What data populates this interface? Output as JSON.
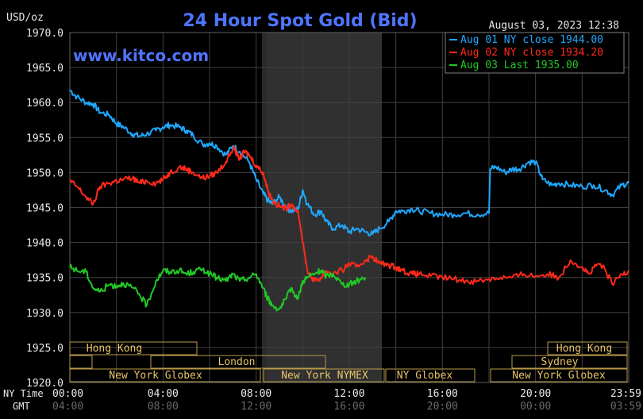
{
  "colors": {
    "background": "#000000",
    "grid": "#404040",
    "axis_text": "#e8e8e8",
    "title": "#4f74ff",
    "watermark": "#4f74ff",
    "session_band": "#2a2a2a",
    "market_label": "#e8c46a",
    "market_box": "#b89a48"
  },
  "header": {
    "currency_label": "USD/oz",
    "title": "24 Hour Spot Gold (Bid)",
    "datetime": "August 03, 2023 12:38",
    "watermark": "www.kitco.com"
  },
  "axis_labels": {
    "ny_time": "NY Time",
    "gmt": "GMT"
  },
  "markets": {
    "row1_left": "Hong Kong",
    "row1_right": "Hong Kong",
    "row2_mid": "London",
    "row2_right": "Sydney",
    "row3_a": "New York Globex",
    "row3_b": "New York NYMEX",
    "row3_c": "NY Globex",
    "row3_d": "New York Globex"
  },
  "chart_data": {
    "type": "line",
    "title": "24 Hour Spot Gold (Bid)",
    "ylabel": "USD/oz",
    "ylim": [
      1920,
      1970
    ],
    "xlim_hours": [
      0,
      24
    ],
    "grid": true,
    "legend_position": "top-right",
    "yticks": [
      "1970.0",
      "1965.0",
      "1960.0",
      "1955.0",
      "1950.0",
      "1945.0",
      "1940.0",
      "1935.0",
      "1930.0",
      "1925.0",
      "1920.0"
    ],
    "ytick_values": [
      1970,
      1965,
      1960,
      1955,
      1950,
      1945,
      1940,
      1935,
      1930,
      1925,
      1920
    ],
    "xticks_ny": [
      "00:00",
      "04:00",
      "08:00",
      "12:00",
      "16:00",
      "20:00",
      "23:59"
    ],
    "xticks_gmt": [
      "04:00",
      "08:00",
      "12:00",
      "16:00",
      "20:00",
      "00:00",
      "03:59"
    ],
    "xtick_hours": [
      0,
      4,
      8,
      12,
      16,
      20,
      24
    ],
    "series": [
      {
        "name": "Aug 01 NY close 1944.00",
        "color": "#1fa8ff",
        "x": [
          0,
          0.3,
          0.7,
          1.0,
          1.3,
          1.7,
          2.0,
          2.3,
          2.7,
          3.0,
          3.3,
          3.7,
          4.0,
          4.3,
          4.7,
          5.0,
          5.3,
          5.7,
          6.0,
          6.3,
          6.7,
          7.0,
          7.3,
          7.7,
          8.0,
          8.3,
          8.5,
          8.7,
          9.0,
          9.3,
          9.5,
          9.8,
          10.0,
          10.2,
          10.5,
          10.8,
          11.0,
          11.3,
          11.7,
          12.0,
          12.3,
          12.7,
          13.0,
          13.3,
          13.7,
          14.0,
          14.3,
          14.7,
          15.0,
          15.5,
          16.0,
          16.5,
          17.0,
          17.5,
          18.0,
          18.05,
          18.3,
          18.7,
          19.0,
          19.3,
          19.7,
          20.0,
          20.3,
          20.7,
          21.0,
          21.5,
          22.0,
          22.5,
          23.0,
          23.3,
          23.7,
          24.0
        ],
        "values": [
          1961.8,
          1960.8,
          1960.0,
          1959.8,
          1958.6,
          1958.2,
          1957.0,
          1956.5,
          1955.5,
          1955.2,
          1955.5,
          1956.0,
          1956.5,
          1956.8,
          1956.5,
          1956.0,
          1955.3,
          1954.0,
          1954.2,
          1953.8,
          1952.5,
          1953.8,
          1953.0,
          1951.5,
          1949.0,
          1947.0,
          1946.0,
          1945.5,
          1946.5,
          1945.0,
          1944.5,
          1944.8,
          1947.5,
          1945.5,
          1944.0,
          1944.5,
          1943.0,
          1942.0,
          1942.5,
          1941.5,
          1942.0,
          1941.5,
          1941.2,
          1942.0,
          1943.0,
          1944.5,
          1944.5,
          1944.8,
          1944.5,
          1944.2,
          1944.0,
          1944.0,
          1944.2,
          1944.0,
          1944.2,
          1950.5,
          1950.8,
          1950.0,
          1950.5,
          1950.5,
          1951.5,
          1951.5,
          1949.0,
          1948.2,
          1948.5,
          1948.2,
          1948.0,
          1948.2,
          1947.5,
          1946.8,
          1948.2,
          1948.5
        ]
      },
      {
        "name": "Aug 02 NY close 1934.20",
        "color": "#ff2a1a",
        "x": [
          0,
          0.3,
          0.7,
          1.0,
          1.3,
          1.7,
          2.0,
          2.3,
          2.7,
          3.0,
          3.3,
          3.7,
          4.0,
          4.3,
          4.7,
          5.0,
          5.3,
          5.7,
          6.0,
          6.3,
          6.7,
          7.0,
          7.3,
          7.5,
          7.7,
          8.0,
          8.3,
          8.5,
          8.7,
          9.0,
          9.3,
          9.5,
          9.8,
          10.0,
          10.2,
          10.5,
          10.8,
          11.0,
          11.3,
          11.7,
          12.0,
          12.3,
          12.7,
          13.0,
          13.3,
          13.7,
          14.0,
          14.3,
          14.7,
          15.0,
          15.5,
          16.0,
          16.5,
          17.0,
          17.5,
          18.0,
          18.5,
          19.0,
          19.5,
          20.0,
          20.5,
          21.0,
          21.5,
          22.0,
          22.3,
          22.7,
          23.0,
          23.3,
          23.7,
          24.0
        ],
        "values": [
          1948.8,
          1948.0,
          1946.5,
          1945.5,
          1948.0,
          1948.5,
          1948.8,
          1949.0,
          1949.2,
          1948.5,
          1948.8,
          1948.5,
          1949.0,
          1950.0,
          1950.8,
          1950.5,
          1950.0,
          1949.2,
          1949.5,
          1950.0,
          1951.5,
          1953.5,
          1952.0,
          1953.0,
          1952.5,
          1951.0,
          1950.0,
          1947.5,
          1946.0,
          1945.2,
          1944.8,
          1945.5,
          1944.5,
          1940.0,
          1936.0,
          1934.5,
          1935.0,
          1936.0,
          1935.5,
          1936.0,
          1937.0,
          1936.5,
          1937.5,
          1938.0,
          1937.0,
          1936.8,
          1936.5,
          1936.0,
          1935.5,
          1935.5,
          1935.2,
          1935.0,
          1934.8,
          1934.5,
          1934.5,
          1934.8,
          1935.0,
          1935.0,
          1935.5,
          1935.2,
          1935.5,
          1935.0,
          1937.5,
          1936.5,
          1935.5,
          1937.0,
          1936.0,
          1934.0,
          1935.5,
          1936.0
        ]
      },
      {
        "name": "Aug 03 Last 1935.00",
        "color": "#22c825",
        "x": [
          0,
          0.3,
          0.7,
          1.0,
          1.3,
          1.7,
          2.0,
          2.3,
          2.7,
          3.0,
          3.3,
          3.7,
          4.0,
          4.3,
          4.7,
          5.0,
          5.3,
          5.7,
          6.0,
          6.3,
          6.7,
          7.0,
          7.3,
          7.7,
          8.0,
          8.3,
          8.5,
          8.7,
          9.0,
          9.3,
          9.5,
          9.8,
          10.0,
          10.2,
          10.5,
          10.8,
          11.0,
          11.3,
          11.7,
          12.0,
          12.3,
          12.7
        ],
        "values": [
          1936.5,
          1936.0,
          1935.8,
          1933.5,
          1933.0,
          1934.0,
          1933.8,
          1934.2,
          1933.5,
          1932.5,
          1931.0,
          1934.5,
          1936.0,
          1935.8,
          1936.0,
          1935.5,
          1935.8,
          1936.2,
          1935.5,
          1935.0,
          1934.5,
          1935.5,
          1934.5,
          1935.0,
          1935.5,
          1933.5,
          1932.0,
          1931.0,
          1930.5,
          1932.0,
          1933.5,
          1932.0,
          1934.5,
          1935.0,
          1935.5,
          1936.0,
          1935.2,
          1935.5,
          1934.0,
          1934.0,
          1934.5,
          1935.0
        ]
      }
    ]
  }
}
